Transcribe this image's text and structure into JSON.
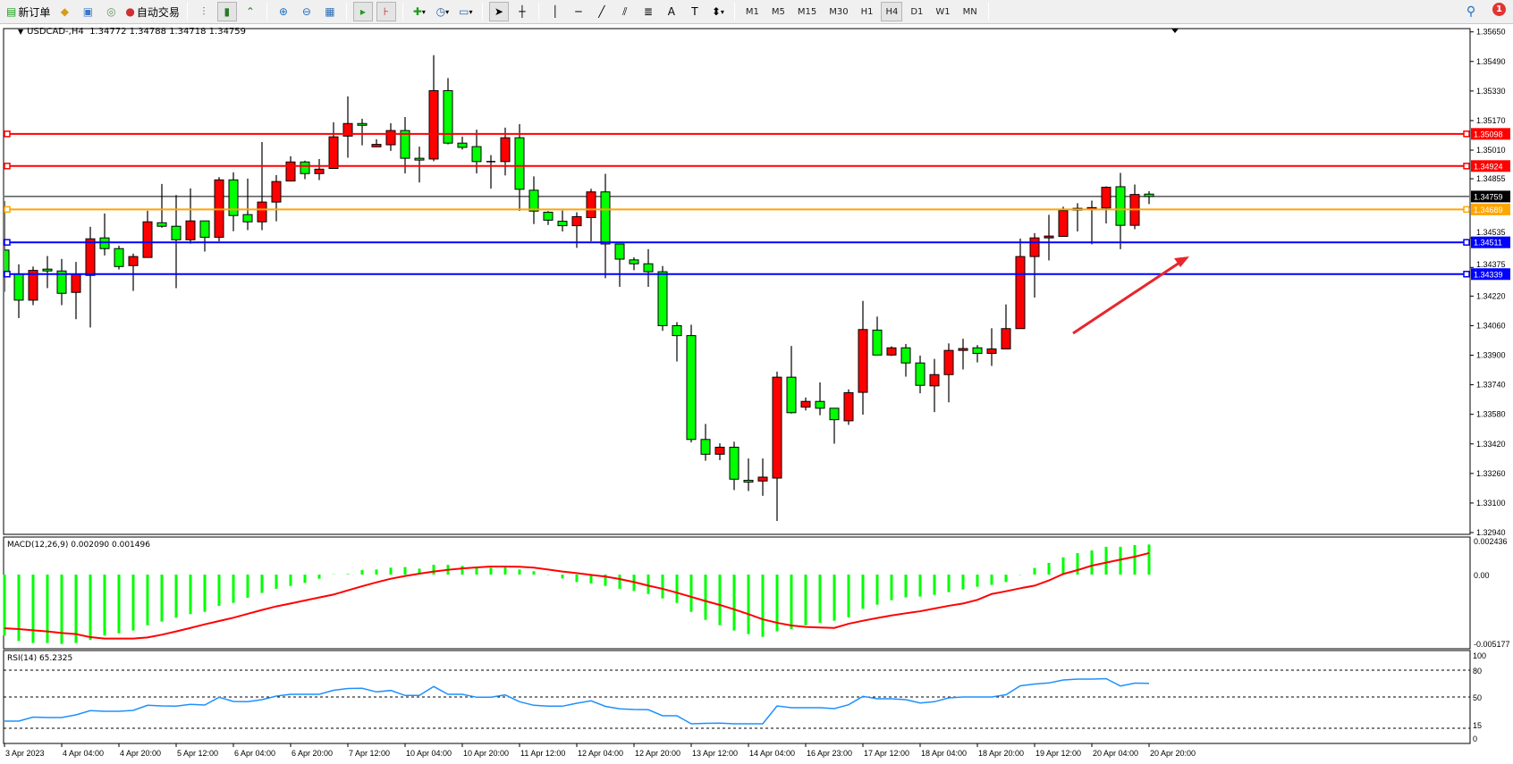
{
  "toolbar": {
    "new_order_label": "新订单",
    "auto_trading_label": "自动交易",
    "timeframes": [
      "M1",
      "M5",
      "M15",
      "M30",
      "H1",
      "H4",
      "D1",
      "W1",
      "MN"
    ],
    "active_timeframe": "H4",
    "notification_count": "1",
    "icons": [
      "new-order-icon",
      "market-watch-icon",
      "navigator-icon",
      "signals-icon",
      "auto-trading-icon",
      "bar-chart-icon",
      "candlestick-icon",
      "line-chart-icon",
      "zoom-in-icon",
      "zoom-out-icon",
      "tile-windows-icon",
      "auto-scroll-icon",
      "chart-shift-icon",
      "indicators-icon",
      "periods-icon",
      "templates-icon",
      "cursor-icon",
      "crosshair-icon",
      "vertical-line-icon",
      "horizontal-line-icon",
      "trendline-icon",
      "equidistant-channel-icon",
      "fibonacci-icon",
      "text-icon",
      "text-label-icon",
      "arrows-icon",
      "search-icon",
      "notifications-icon"
    ]
  },
  "chart": {
    "symbol_info": "USDCAD-,H4  1.34772 1.34788 1.34718 1.34759",
    "colors": {
      "bull": "#ff0000",
      "bear": "#00ff00",
      "macd_hist": "#00ff00",
      "macd_signal": "#ff0000",
      "rsi": "#1e90ff"
    },
    "current_price": {
      "value": "1.34759",
      "color": "#000000"
    },
    "levels": [
      {
        "value": "1.35098",
        "color": "#ff0000"
      },
      {
        "value": "1.34924",
        "color": "#ff0000"
      },
      {
        "value": "1.34689",
        "color": "#ffa500"
      },
      {
        "value": "1.34511",
        "color": "#0000ff"
      },
      {
        "value": "1.34339",
        "color": "#0000ff"
      }
    ],
    "price_axis": [
      "1.35650",
      "1.35490",
      "1.35330",
      "1.35170",
      "1.35010",
      "1.34855",
      "1.34535",
      "1.34375",
      "1.34220",
      "1.34060",
      "1.33900",
      "1.33740",
      "1.33580",
      "1.33420",
      "1.33260",
      "1.33100",
      "1.32940"
    ],
    "time_axis": [
      "3 Apr 2023",
      "4 Apr 04:00",
      "4 Apr 20:00",
      "5 Apr 12:00",
      "6 Apr 04:00",
      "6 Apr 20:00",
      "7 Apr 12:00",
      "10 Apr 04:00",
      "10 Apr 20:00",
      "11 Apr 12:00",
      "12 Apr 04:00",
      "12 Apr 20:00",
      "13 Apr 12:00",
      "14 Apr 04:00",
      "16 Apr 23:00",
      "17 Apr 12:00",
      "18 Apr 04:00",
      "18 Apr 20:00",
      "19 Apr 12:00",
      "20 Apr 04:00",
      "20 Apr 20:00"
    ],
    "annotation": {
      "type": "arrow",
      "color": "#e8262b",
      "direction": "up-right"
    }
  },
  "chart_data": [
    {
      "type": "candlestick",
      "title": "USDCAD-,H4",
      "ylim": [
        1.3294,
        1.3565
      ],
      "ohlc": [
        [
          1.34469,
          1.34735,
          1.34243,
          1.3434
        ],
        [
          1.3434,
          1.34392,
          1.34101,
          1.34198
        ],
        [
          1.34198,
          1.3438,
          1.34171,
          1.34359
        ],
        [
          1.34366,
          1.34437,
          1.34263,
          1.34356
        ],
        [
          1.34356,
          1.34421,
          1.34171,
          1.34235
        ],
        [
          1.3424,
          1.34405,
          1.34095,
          1.34337
        ],
        [
          1.34332,
          1.34595,
          1.3405,
          1.3453
        ],
        [
          1.34535,
          1.34667,
          1.3444,
          1.34477
        ],
        [
          1.34477,
          1.34493,
          1.34364,
          1.3438
        ],
        [
          1.34385,
          1.3445,
          1.34248,
          1.34434
        ],
        [
          1.34429,
          1.34682,
          1.34429,
          1.34622
        ],
        [
          1.34617,
          1.34827,
          1.3459,
          1.34598
        ],
        [
          1.34598,
          1.34767,
          1.34263,
          1.34525
        ],
        [
          1.34525,
          1.34803,
          1.34504,
          1.34627
        ],
        [
          1.34627,
          1.34627,
          1.34461,
          1.34538
        ],
        [
          1.34538,
          1.34864,
          1.34517,
          1.34849
        ],
        [
          1.34849,
          1.3489,
          1.34571,
          1.34656
        ],
        [
          1.34661,
          1.34856,
          1.34577,
          1.34622
        ],
        [
          1.34622,
          1.35054,
          1.34577,
          1.34729
        ],
        [
          1.34729,
          1.34875,
          1.34625,
          1.3484
        ],
        [
          1.34843,
          1.34977,
          1.3484,
          1.34946
        ],
        [
          1.34946,
          1.34953,
          1.34853,
          1.34883
        ],
        [
          1.34883,
          1.34962,
          1.34848,
          1.34907
        ],
        [
          1.34911,
          1.35161,
          1.34911,
          1.35082
        ],
        [
          1.35086,
          1.35301,
          1.34969,
          1.35154
        ],
        [
          1.35154,
          1.3518,
          1.35036,
          1.35149
        ],
        [
          1.35028,
          1.35069,
          1.35027,
          1.35041
        ],
        [
          1.35039,
          1.35156,
          1.35006,
          1.35116
        ],
        [
          1.35116,
          1.35189,
          1.34884,
          1.34966
        ],
        [
          1.34966,
          1.35029,
          1.34835,
          1.34962
        ],
        [
          1.34962,
          1.35524,
          1.3495,
          1.35332
        ],
        [
          1.35332,
          1.354,
          1.35041,
          1.35048
        ],
        [
          1.35048,
          1.35083,
          1.35013,
          1.35025
        ],
        [
          1.35029,
          1.35121,
          1.34884,
          1.34948
        ],
        [
          1.34948,
          1.34983,
          1.34802,
          1.34948
        ],
        [
          1.34948,
          1.35132,
          1.34873,
          1.35077
        ],
        [
          1.35077,
          1.35151,
          1.34681,
          1.34798
        ],
        [
          1.34793,
          1.34868,
          1.3461,
          1.3468
        ],
        [
          1.34674,
          1.3468,
          1.34605,
          1.34631
        ],
        [
          1.34625,
          1.34683,
          1.3457,
          1.34601
        ],
        [
          1.34601,
          1.34674,
          1.34481,
          1.3465
        ],
        [
          1.34645,
          1.34801,
          1.34517,
          1.34784
        ],
        [
          1.34784,
          1.34882,
          1.34317,
          1.34502
        ],
        [
          1.34502,
          1.34502,
          1.3427,
          1.3442
        ],
        [
          1.34416,
          1.3443,
          1.3436,
          1.34395
        ],
        [
          1.34395,
          1.34474,
          1.3427,
          1.34352
        ],
        [
          1.34352,
          1.34383,
          1.34032,
          1.3406
        ],
        [
          1.3406,
          1.34079,
          1.33866,
          1.34006
        ],
        [
          1.34006,
          1.34065,
          1.33428,
          1.33444
        ],
        [
          1.33444,
          1.33528,
          1.33329,
          1.33364
        ],
        [
          1.33364,
          1.33423,
          1.33332,
          1.33402
        ],
        [
          1.33402,
          1.33432,
          1.3317,
          1.33229
        ],
        [
          1.33223,
          1.33341,
          1.33165,
          1.33219
        ],
        [
          1.33219,
          1.33341,
          1.33139,
          1.3324
        ],
        [
          1.33235,
          1.33811,
          1.33003,
          1.33781
        ],
        [
          1.33781,
          1.3395,
          1.33584,
          1.33589
        ],
        [
          1.33619,
          1.33671,
          1.33601,
          1.3365
        ],
        [
          1.3365,
          1.33753,
          1.33575,
          1.33613
        ],
        [
          1.33613,
          1.33613,
          1.33421,
          1.33551
        ],
        [
          1.33545,
          1.33715,
          1.33523,
          1.33697
        ],
        [
          1.33699,
          1.34194,
          1.33578,
          1.34039
        ],
        [
          1.34036,
          1.34109,
          1.33901,
          1.33901
        ],
        [
          1.33901,
          1.33948,
          1.33896,
          1.3394
        ],
        [
          1.3394,
          1.33961,
          1.33784,
          1.33858
        ],
        [
          1.33858,
          1.33898,
          1.33694,
          1.33737
        ],
        [
          1.33734,
          1.3388,
          1.33592,
          1.33795
        ],
        [
          1.33795,
          1.33964,
          1.33645,
          1.33926
        ],
        [
          1.33926,
          1.33989,
          1.33823,
          1.33936
        ],
        [
          1.3394,
          1.33955,
          1.33861,
          1.3391
        ],
        [
          1.3391,
          1.34046,
          1.33842,
          1.33934
        ],
        [
          1.33934,
          1.34175,
          1.33934,
          1.34044
        ],
        [
          1.34044,
          1.34531,
          1.34044,
          1.34434
        ],
        [
          1.34434,
          1.34561,
          1.34212,
          1.34535
        ],
        [
          1.34535,
          1.3466,
          1.34413,
          1.34545
        ],
        [
          1.34543,
          1.34704,
          1.34543,
          1.34683
        ],
        [
          1.34692,
          1.34723,
          1.3457,
          1.34695
        ],
        [
          1.34695,
          1.34737,
          1.345,
          1.34699
        ],
        [
          1.34697,
          1.34814,
          1.34613,
          1.34809
        ],
        [
          1.34812,
          1.34887,
          1.34474,
          1.34603
        ],
        [
          1.34603,
          1.34824,
          1.34582,
          1.3477
        ],
        [
          1.34772,
          1.34788,
          1.34718,
          1.34759
        ]
      ]
    },
    {
      "type": "bar+line",
      "title": "MACD(12,26,9) 0.002090 0.001496",
      "ylim": [
        -0.005177,
        0.002436
      ],
      "axis_labels": [
        "0.002436",
        "0.00",
        "-0.005177"
      ],
      "histogram": [
        -0.00424,
        -0.00462,
        -0.00476,
        -0.00476,
        -0.00482,
        -0.00476,
        -0.00455,
        -0.00424,
        -0.00408,
        -0.00389,
        -0.00352,
        -0.00327,
        -0.003,
        -0.00275,
        -0.00259,
        -0.00217,
        -0.00197,
        -0.00161,
        -0.00128,
        -0.00099,
        -0.00079,
        -0.00058,
        -0.00029,
        2e-05,
        4e-05,
        0.00031,
        0.00035,
        0.00048,
        0.00052,
        0.00041,
        0.00068,
        0.00068,
        0.0006,
        0.00052,
        0.00048,
        0.00052,
        0.00035,
        0.00023,
        -2e-05,
        -0.00027,
        -0.00052,
        -0.00062,
        -0.00079,
        -0.00099,
        -0.00114,
        -0.00135,
        -0.00166,
        -0.00197,
        -0.00259,
        -0.00315,
        -0.00352,
        -0.00389,
        -0.00414,
        -0.00433,
        -0.00395,
        -0.00379,
        -0.00352,
        -0.00335,
        -0.00321,
        -0.00296,
        -0.00238,
        -0.00209,
        -0.00178,
        -0.00159,
        -0.00153,
        -0.00141,
        -0.00122,
        -0.00104,
        -0.00085,
        -0.00072,
        -0.00052,
        -2e-05,
        0.00046,
        0.00081,
        0.0012,
        0.00149,
        0.00168,
        0.00193,
        0.00193,
        0.00205,
        0.00209
      ],
      "signal": [
        -0.00373,
        -0.00379,
        -0.00387,
        -0.00395,
        -0.00406,
        -0.00414,
        -0.00435,
        -0.00445,
        -0.00445,
        -0.00445,
        -0.00437,
        -0.00418,
        -0.00395,
        -0.00371,
        -0.00346,
        -0.00323,
        -0.003,
        -0.00273,
        -0.00246,
        -0.00221,
        -0.00201,
        -0.0018,
        -0.00159,
        -0.00139,
        -0.0011,
        -0.00081,
        -0.00054,
        -0.00029,
        -0.0001,
        6e-05,
        0.00021,
        0.00033,
        0.00043,
        0.0005,
        0.00056,
        0.00056,
        0.00054,
        0.00048,
        0.00035,
        0.00021,
        0.0001,
        -2e-05,
        -0.00014,
        -0.00031,
        -0.00052,
        -0.00077,
        -0.00099,
        -0.00126,
        -0.00155,
        -0.00184,
        -0.00211,
        -0.00242,
        -0.00275,
        -0.00311,
        -0.00335,
        -0.00354,
        -0.00364,
        -0.00368,
        -0.00371,
        -0.00342,
        -0.00321,
        -0.00302,
        -0.00284,
        -0.00269,
        -0.00255,
        -0.00236,
        -0.00217,
        -0.00201,
        -0.00176,
        -0.00135,
        -0.00116,
        -0.00095,
        -0.00077,
        -0.00041,
        4e-05,
        0.00031,
        0.00062,
        0.00083,
        0.00104,
        0.00124,
        0.001496
      ]
    },
    {
      "type": "line",
      "title": "RSI(14) 65.2325",
      "ylim": [
        0,
        100
      ],
      "axis_labels": [
        "100",
        "80",
        "50",
        "15",
        "0"
      ],
      "levels": [
        80,
        50,
        15
      ],
      "values": [
        23,
        23,
        27.5,
        27,
        27,
        30,
        34.7,
        34,
        34,
        35,
        40.7,
        40,
        39.7,
        41.7,
        41,
        49.7,
        45,
        44.7,
        47,
        51,
        53,
        53,
        53,
        57.5,
        59.5,
        59.7,
        55.7,
        57.3,
        51.7,
        51.7,
        61.7,
        53,
        53,
        49.7,
        49.7,
        52.3,
        44.7,
        40.7,
        39.7,
        39.7,
        43,
        45.7,
        39.5,
        36.7,
        36,
        35.7,
        29,
        29,
        20,
        20.5,
        20.7,
        20,
        20,
        20,
        40,
        38,
        38,
        38,
        37,
        41.3,
        50.7,
        48,
        48,
        47,
        43.3,
        44.7,
        49,
        50,
        50,
        50,
        52.5,
        62.5,
        64.5,
        65.7,
        69,
        70,
        70,
        70.5,
        62.3,
        65.5,
        65.2325
      ]
    }
  ]
}
